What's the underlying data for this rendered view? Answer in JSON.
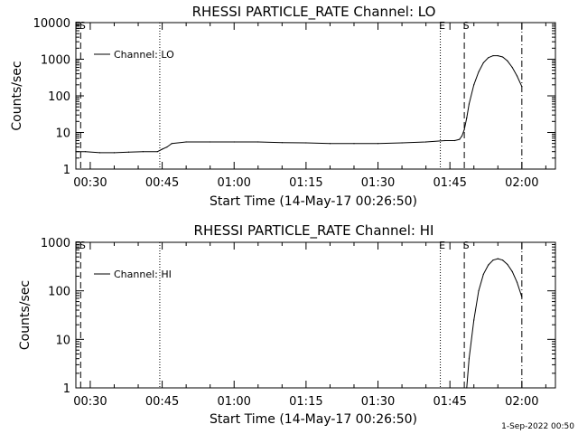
{
  "footer": {
    "timestamp": "1-Sep-2022 00:50"
  },
  "chart_data": [
    {
      "type": "line",
      "title": "RHESSI PARTICLE_RATE Channel: LO",
      "xlabel": "Start Time (14-May-17 00:26:50)",
      "ylabel": "Counts/sec",
      "y_scale": "log",
      "xlim": [
        "00:27",
        "02:07"
      ],
      "ylim": [
        1,
        10000
      ],
      "x_ticks": [
        "00:30",
        "00:45",
        "01:00",
        "01:15",
        "01:30",
        "01:45",
        "02:00"
      ],
      "y_ticks": [
        "1",
        "10",
        "100",
        "1000",
        "10000"
      ],
      "grid": false,
      "legend": {
        "position": "top-left",
        "entries": [
          "Channel: LO"
        ]
      },
      "markers": [
        {
          "time": "00:27",
          "style": "dash-dot",
          "label": "E"
        },
        {
          "time": "00:28",
          "style": "dashed",
          "label": "S"
        },
        {
          "time": "00:44.5",
          "style": "dotted",
          "label": ""
        },
        {
          "time": "01:43",
          "style": "dotted",
          "label": "E"
        },
        {
          "time": "01:48",
          "style": "dashed",
          "label": "S"
        },
        {
          "time": "02:00",
          "style": "dash-dot",
          "label": ""
        }
      ],
      "series": [
        {
          "name": "Channel: LO",
          "x": [
            "00:27",
            "00:29",
            "00:32",
            "00:35",
            "00:38",
            "00:41",
            "00:44",
            "00:45",
            "00:46",
            "00:47",
            "00:50",
            "00:55",
            "01:00",
            "01:05",
            "01:10",
            "01:15",
            "01:20",
            "01:25",
            "01:30",
            "01:35",
            "01:40",
            "01:44",
            "01:46",
            "01:47",
            "01:47.5",
            "01:48",
            "01:48.5",
            "01:49",
            "01:50",
            "01:51",
            "01:52",
            "01:53",
            "01:54",
            "01:55",
            "01:56",
            "01:57",
            "01:58",
            "01:59",
            "02:00"
          ],
          "values": [
            3,
            3,
            2.8,
            2.8,
            2.9,
            3,
            3,
            3.5,
            4,
            5,
            5.5,
            5.5,
            5.5,
            5.5,
            5.3,
            5.2,
            5,
            5,
            5,
            5.2,
            5.5,
            6,
            6,
            6.5,
            8,
            12,
            25,
            60,
            200,
            450,
            800,
            1100,
            1250,
            1250,
            1150,
            900,
            600,
            350,
            180
          ]
        }
      ]
    },
    {
      "type": "line",
      "title": "RHESSI PARTICLE_RATE Channel: HI",
      "xlabel": "Start Time (14-May-17 00:26:50)",
      "ylabel": "Counts/sec",
      "y_scale": "log",
      "xlim": [
        "00:27",
        "02:07"
      ],
      "ylim": [
        1,
        1000
      ],
      "x_ticks": [
        "00:30",
        "00:45",
        "01:00",
        "01:15",
        "01:30",
        "01:45",
        "02:00"
      ],
      "y_ticks": [
        "1",
        "10",
        "100",
        "1000"
      ],
      "grid": false,
      "legend": {
        "position": "top-left",
        "entries": [
          "Channel: HI"
        ]
      },
      "markers": [
        {
          "time": "00:27",
          "style": "dash-dot",
          "label": "E"
        },
        {
          "time": "00:28",
          "style": "dashed",
          "label": "S"
        },
        {
          "time": "00:44.5",
          "style": "dotted",
          "label": ""
        },
        {
          "time": "01:43",
          "style": "dotted",
          "label": "E"
        },
        {
          "time": "01:48",
          "style": "dashed",
          "label": "S"
        },
        {
          "time": "02:00",
          "style": "dash-dot",
          "label": ""
        }
      ],
      "series": [
        {
          "name": "Channel: HI",
          "x": [
            "01:48.5",
            "01:49",
            "01:50",
            "01:51",
            "01:52",
            "01:53",
            "01:54",
            "01:55",
            "01:56",
            "01:57",
            "01:58",
            "01:59",
            "02:00"
          ],
          "values": [
            1,
            4,
            25,
            100,
            220,
            340,
            430,
            460,
            430,
            350,
            250,
            150,
            75
          ]
        }
      ]
    }
  ]
}
